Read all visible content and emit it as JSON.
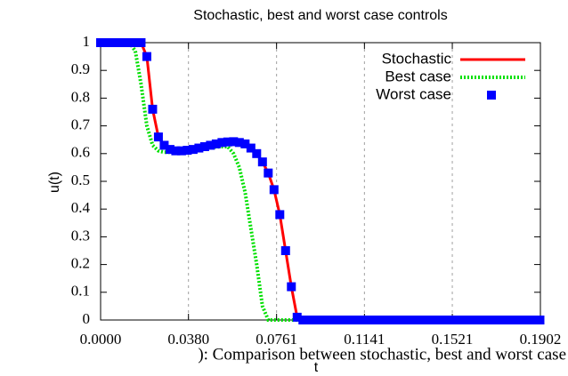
{
  "chart_data": {
    "type": "line",
    "title": "Stochastic, best and worst case controls",
    "xlabel": "t",
    "ylabel": "u(t)",
    "caption": "): Comparison between stochastic, best and worst case",
    "x": [
      0,
      0.0025,
      0.005,
      0.0075,
      0.01,
      0.0125,
      0.015,
      0.0175,
      0.02,
      0.0225,
      0.025,
      0.0275,
      0.03,
      0.0325,
      0.035,
      0.0375,
      0.04,
      0.0425,
      0.045,
      0.0475,
      0.05,
      0.0525,
      0.055,
      0.0575,
      0.06,
      0.0625,
      0.065,
      0.0675,
      0.07,
      0.0725,
      0.075,
      0.0775,
      0.08,
      0.0825,
      0.085,
      0.0875,
      0.09,
      0.0925,
      0.095,
      0.0975,
      0.1,
      0.1025,
      0.105,
      0.1075,
      0.11,
      0.1125,
      0.115,
      0.1175,
      0.12,
      0.1225,
      0.125,
      0.1275,
      0.13,
      0.1325,
      0.135,
      0.1375,
      0.14,
      0.1425,
      0.145,
      0.1475,
      0.15,
      0.1525,
      0.155,
      0.1575,
      0.16,
      0.1625,
      0.165,
      0.1675,
      0.17,
      0.1725,
      0.175,
      0.1775,
      0.18,
      0.1825,
      0.185,
      0.1875,
      0.19
    ],
    "series": [
      {
        "name": "Stochastic",
        "color": "#ff0000",
        "style": "line",
        "values": [
          1,
          1,
          1,
          1,
          1,
          1,
          1,
          1,
          0.95,
          0.76,
          0.66,
          0.63,
          0.615,
          0.61,
          0.61,
          0.612,
          0.615,
          0.62,
          0.625,
          0.63,
          0.635,
          0.64,
          0.642,
          0.643,
          0.64,
          0.635,
          0.62,
          0.6,
          0.57,
          0.53,
          0.47,
          0.38,
          0.25,
          0.12,
          0.01,
          0,
          0,
          0,
          0,
          0,
          0,
          0,
          0,
          0,
          0,
          0,
          0,
          0,
          0,
          0,
          0,
          0,
          0,
          0,
          0,
          0,
          0,
          0,
          0,
          0,
          0,
          0,
          0,
          0,
          0,
          0,
          0,
          0,
          0,
          0,
          0,
          0,
          0,
          0,
          0,
          0,
          0
        ]
      },
      {
        "name": "Best case",
        "color": "#00e000",
        "style": "dots",
        "values": [
          1,
          1,
          1,
          1,
          1,
          1,
          0.97,
          0.85,
          0.7,
          0.63,
          0.61,
          0.605,
          0.605,
          0.607,
          0.61,
          0.612,
          0.615,
          0.617,
          0.62,
          0.622,
          0.624,
          0.625,
          0.625,
          0.6,
          0.55,
          0.46,
          0.33,
          0.2,
          0.05,
          0,
          0,
          0,
          0,
          0,
          0,
          0,
          0,
          0,
          0,
          0,
          0,
          0,
          0,
          0,
          0,
          0,
          0,
          0,
          0,
          0,
          0,
          0,
          0,
          0,
          0,
          0,
          0,
          0,
          0,
          0,
          0,
          0,
          0,
          0,
          0,
          0,
          0,
          0,
          0,
          0,
          0,
          0,
          0,
          0,
          0,
          0,
          0
        ]
      },
      {
        "name": "Worst case",
        "color": "#0000ff",
        "style": "squares",
        "values": [
          1,
          1,
          1,
          1,
          1,
          1,
          1,
          1,
          0.95,
          0.76,
          0.66,
          0.63,
          0.615,
          0.61,
          0.61,
          0.612,
          0.615,
          0.62,
          0.625,
          0.63,
          0.635,
          0.64,
          0.642,
          0.643,
          0.64,
          0.635,
          0.62,
          0.6,
          0.57,
          0.53,
          0.47,
          0.38,
          0.25,
          0.12,
          0.01,
          0,
          0,
          0,
          0,
          0,
          0,
          0,
          0,
          0,
          0,
          0,
          0,
          0,
          0,
          0,
          0,
          0,
          0,
          0,
          0,
          0,
          0,
          0,
          0,
          0,
          0,
          0,
          0,
          0,
          0,
          0,
          0,
          0,
          0,
          0,
          0,
          0,
          0,
          0,
          0,
          0,
          0
        ]
      }
    ],
    "xlim": [
      0,
      0.1902
    ],
    "xticks": [
      {
        "value": 0,
        "label": "0.0000"
      },
      {
        "value": 0.038,
        "label": "0.0380"
      },
      0.0761,
      0.1141,
      0.1521,
      0.1902
    ],
    "ylim": [
      0,
      1
    ],
    "yticks": [
      0,
      0.1,
      0.2,
      0.3,
      0.4,
      0.5,
      0.6,
      0.7,
      0.8,
      0.9,
      1
    ],
    "xgrid": true,
    "legend": "top-right"
  }
}
